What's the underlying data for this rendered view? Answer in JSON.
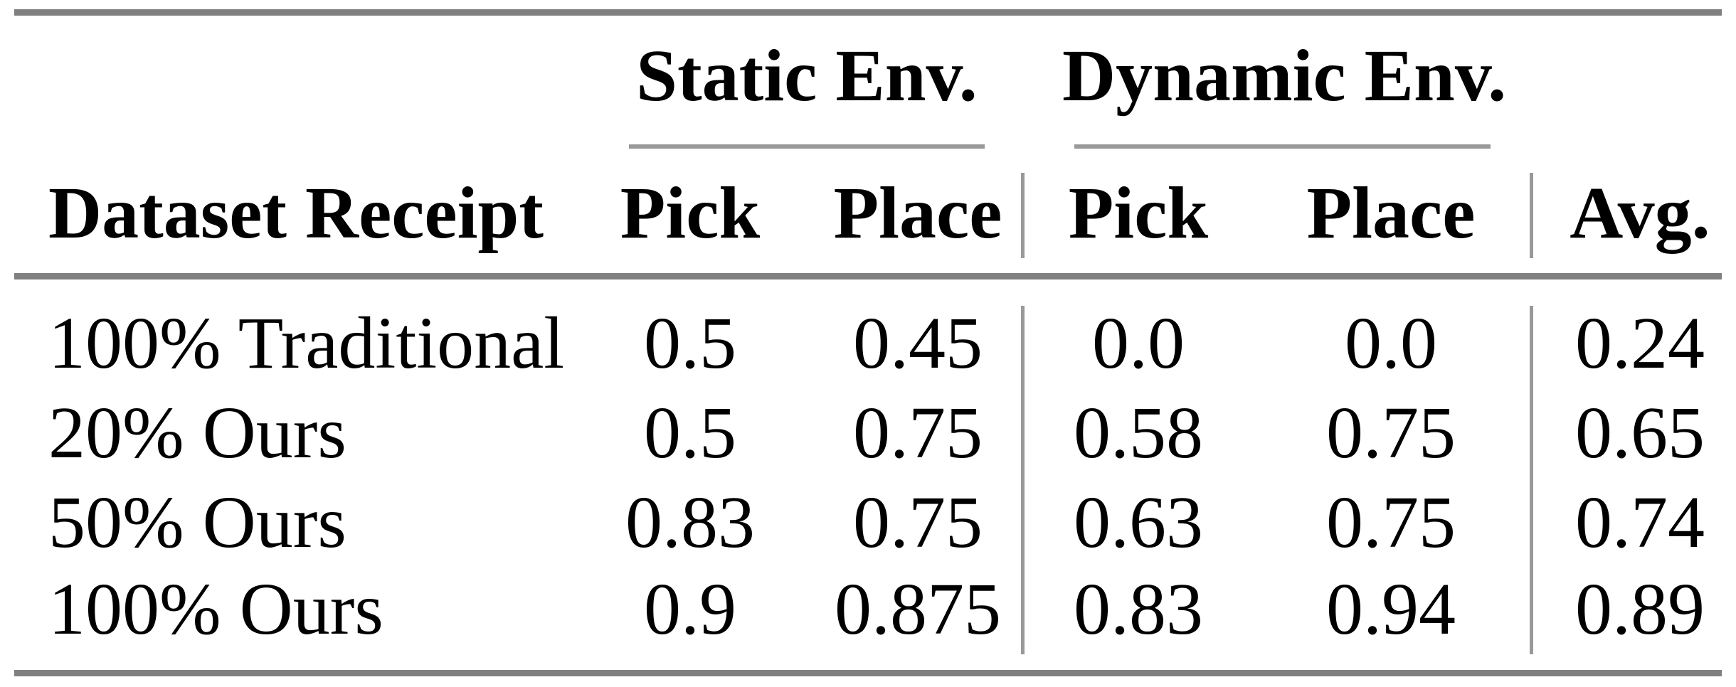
{
  "table": {
    "group_headers": {
      "static": "Static Env.",
      "dynamic": "Dynamic Env."
    },
    "columns": {
      "row_label": "Dataset Receipt",
      "static_pick": "Pick",
      "static_place": "Place",
      "dynamic_pick": "Pick",
      "dynamic_place": "Place",
      "avg": "Avg."
    },
    "rows": [
      {
        "label": "100% Traditional",
        "static_pick": "0.5",
        "static_place": "0.45",
        "dynamic_pick": "0.0",
        "dynamic_place": "0.0",
        "avg": "0.24"
      },
      {
        "label": "20% Ours",
        "static_pick": "0.5",
        "static_place": "0.75",
        "dynamic_pick": "0.58",
        "dynamic_place": "0.75",
        "avg": "0.65"
      },
      {
        "label": "50% Ours",
        "static_pick": "0.83",
        "static_place": "0.75",
        "dynamic_pick": "0.63",
        "dynamic_place": "0.75",
        "avg": "0.74"
      },
      {
        "label": "100% Ours",
        "static_pick": "0.9",
        "static_place": "0.875",
        "dynamic_pick": "0.83",
        "dynamic_place": "0.94",
        "avg": "0.89"
      }
    ]
  },
  "chart_data": {
    "type": "table",
    "column_groups": [
      "Static Env.",
      "Dynamic Env."
    ],
    "columns": [
      "Dataset Receipt",
      "Static Env. Pick",
      "Static Env. Place",
      "Dynamic Env. Pick",
      "Dynamic Env. Place",
      "Avg."
    ],
    "rows": [
      [
        "100% Traditional",
        0.5,
        0.45,
        0.0,
        0.0,
        0.24
      ],
      [
        "20% Ours",
        0.5,
        0.75,
        0.58,
        0.75,
        0.65
      ],
      [
        "50% Ours",
        0.83,
        0.75,
        0.63,
        0.75,
        0.74
      ],
      [
        "100% Ours",
        0.9,
        0.875,
        0.83,
        0.94,
        0.89
      ]
    ]
  },
  "colors": {
    "rule_thick": "#808080",
    "rule_thin": "#999999",
    "text": "#000000",
    "background": "#ffffff"
  }
}
